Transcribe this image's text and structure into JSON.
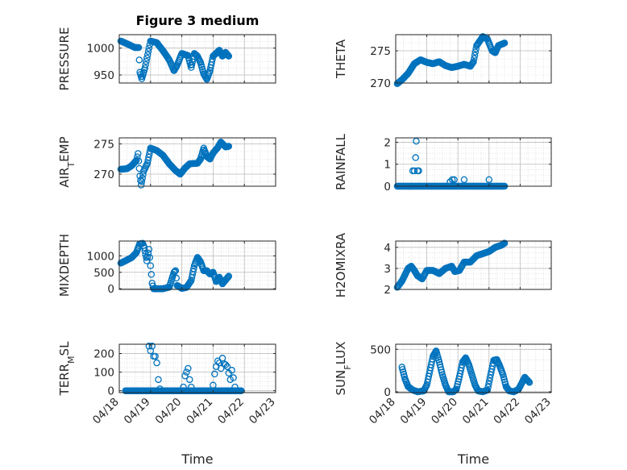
{
  "colors": {
    "marker": "#0072BD",
    "axis": "#262626",
    "grid": "#bcbcbc"
  },
  "chart_data": [
    {
      "type": "scatter",
      "id": "pressure",
      "title": "Figure 3 medium",
      "ylabel": "PRESSURE",
      "ylim": [
        935,
        1025
      ],
      "yticks": [
        950,
        1000
      ],
      "ytick_labels": [
        "950",
        "1000"
      ],
      "xlim": [
        0,
        5
      ],
      "xtick_labels": [],
      "xlabel": "",
      "grid": true,
      "minor_grid": true,
      "series": [
        {
          "knots": [
            [
              0.05,
              1013
            ],
            [
              0.25,
              1008
            ],
            [
              0.5,
              1001
            ],
            [
              0.62,
              1001
            ],
            [
              0.66,
              955
            ],
            [
              0.72,
              943
            ],
            [
              0.82,
              963
            ],
            [
              0.95,
              1000
            ],
            [
              1.0,
              1013
            ],
            [
              1.2,
              1010
            ],
            [
              1.4,
              995
            ],
            [
              1.6,
              978
            ],
            [
              1.75,
              958
            ],
            [
              1.85,
              968
            ],
            [
              2.0,
              990
            ],
            [
              2.2,
              986
            ],
            [
              2.3,
              964
            ],
            [
              2.4,
              990
            ],
            [
              2.5,
              985
            ],
            [
              2.6,
              973
            ],
            [
              2.7,
              952
            ],
            [
              2.8,
              942
            ],
            [
              2.9,
              958
            ],
            [
              3.0,
              985
            ],
            [
              3.2,
              996
            ],
            [
              3.3,
              985
            ],
            [
              3.4,
              992
            ],
            [
              3.5,
              985
            ]
          ]
        }
      ]
    },
    {
      "type": "scatter",
      "id": "theta",
      "title": "",
      "ylabel": "THETA",
      "ylim": [
        270,
        277.5
      ],
      "yticks": [
        270,
        275
      ],
      "ytick_labels": [
        "270",
        "275"
      ],
      "xlim": [
        0,
        5
      ],
      "xtick_labels": [],
      "xlabel": "",
      "grid": true,
      "minor_grid": true,
      "series": [
        {
          "knots": [
            [
              0.05,
              269.9
            ],
            [
              0.2,
              270.5
            ],
            [
              0.4,
              271.5
            ],
            [
              0.6,
              273.0
            ],
            [
              0.8,
              273.6
            ],
            [
              1.0,
              273.2
            ],
            [
              1.2,
              273.0
            ],
            [
              1.4,
              273.3
            ],
            [
              1.6,
              272.7
            ],
            [
              1.8,
              272.4
            ],
            [
              2.0,
              272.6
            ],
            [
              2.2,
              272.9
            ],
            [
              2.4,
              272.6
            ],
            [
              2.5,
              273.3
            ],
            [
              2.6,
              275.8
            ],
            [
              2.8,
              277.2
            ],
            [
              2.95,
              276.8
            ],
            [
              3.1,
              275.0
            ],
            [
              3.2,
              274.7
            ],
            [
              3.3,
              275.8
            ],
            [
              3.5,
              276.2
            ]
          ]
        }
      ]
    },
    {
      "type": "scatter",
      "id": "airtemp",
      "title": "",
      "ylabel": "AIR_TEMP",
      "ylabel_main": "AIR",
      "ylabel_sub": "T",
      "ylabel_tail": "EMP",
      "ylim": [
        268,
        276
      ],
      "yticks": [
        270,
        275
      ],
      "ytick_labels": [
        "270",
        "275"
      ],
      "xlim": [
        0,
        5
      ],
      "xtick_labels": [],
      "xlabel": "",
      "grid": true,
      "minor_grid": true,
      "series": [
        {
          "knots": [
            [
              0.05,
              270.8
            ],
            [
              0.25,
              270.9
            ],
            [
              0.4,
              271.4
            ],
            [
              0.55,
              272.3
            ],
            [
              0.6,
              273.4
            ],
            [
              0.66,
              269.7
            ],
            [
              0.7,
              268.2
            ],
            [
              0.78,
              270.5
            ],
            [
              0.9,
              271.8
            ],
            [
              1.0,
              274.3
            ],
            [
              1.2,
              273.9
            ],
            [
              1.4,
              273.1
            ],
            [
              1.6,
              271.7
            ],
            [
              1.8,
              270.6
            ],
            [
              1.95,
              270.0
            ],
            [
              2.1,
              271.0
            ],
            [
              2.25,
              271.7
            ],
            [
              2.5,
              271.8
            ],
            [
              2.6,
              272.5
            ],
            [
              2.7,
              274.3
            ],
            [
              2.8,
              272.9
            ],
            [
              2.9,
              272.5
            ],
            [
              3.0,
              273.5
            ],
            [
              3.15,
              274.4
            ],
            [
              3.25,
              275.3
            ],
            [
              3.4,
              274.5
            ],
            [
              3.5,
              274.6
            ]
          ]
        }
      ]
    },
    {
      "type": "scatter",
      "id": "rainfall",
      "title": "",
      "ylabel": "RAINFALL",
      "ylim": [
        0,
        2.2
      ],
      "yticks": [
        0,
        1,
        2
      ],
      "ytick_labels": [
        "0",
        "1",
        "2"
      ],
      "xlim": [
        0,
        5
      ],
      "xtick_labels": [],
      "xlabel": "",
      "grid": true,
      "minor_grid": true,
      "spikes": [
        [
          0.55,
          0.7
        ],
        [
          0.6,
          0.7
        ],
        [
          0.64,
          1.3
        ],
        [
          0.66,
          2.05
        ],
        [
          0.7,
          0.7
        ],
        [
          0.74,
          0.7
        ],
        [
          1.75,
          0.2
        ],
        [
          1.82,
          0.3
        ],
        [
          1.88,
          0.3
        ],
        [
          2.2,
          0.3
        ],
        [
          3.0,
          0.3
        ]
      ],
      "series": [
        {
          "knots": [
            [
              0.05,
              0.0
            ],
            [
              3.5,
              0.0
            ]
          ]
        }
      ]
    },
    {
      "type": "scatter",
      "id": "mixdepth",
      "title": "",
      "ylabel": "MIXDEPTH",
      "ylim": [
        -20,
        1450
      ],
      "yticks": [
        0,
        500,
        1000
      ],
      "ytick_labels": [
        "0",
        "500",
        "1000"
      ],
      "xlim": [
        0,
        5
      ],
      "xtick_labels": [],
      "xlabel": "",
      "grid": true,
      "minor_grid": true,
      "series": [
        {
          "knots": [
            [
              0.05,
              780
            ],
            [
              0.2,
              850
            ],
            [
              0.4,
              950
            ],
            [
              0.55,
              1100
            ],
            [
              0.65,
              1360
            ],
            [
              0.75,
              1380
            ],
            [
              0.8,
              1250
            ],
            [
              0.88,
              850
            ],
            [
              0.95,
              1200
            ],
            [
              1.0,
              700
            ],
            [
              1.05,
              170
            ],
            [
              1.1,
              0
            ],
            [
              1.4,
              0
            ],
            [
              1.6,
              50
            ],
            [
              1.75,
              500
            ],
            [
              1.8,
              550
            ],
            [
              1.85,
              100
            ],
            [
              2.0,
              10
            ],
            [
              2.15,
              40
            ],
            [
              2.3,
              250
            ],
            [
              2.4,
              700
            ],
            [
              2.5,
              950
            ],
            [
              2.6,
              820
            ],
            [
              2.7,
              550
            ],
            [
              2.8,
              550
            ],
            [
              2.9,
              450
            ],
            [
              3.0,
              500
            ],
            [
              3.1,
              220
            ],
            [
              3.2,
              350
            ],
            [
              3.3,
              150
            ],
            [
              3.5,
              380
            ]
          ]
        }
      ]
    },
    {
      "type": "scatter",
      "id": "h2omixra",
      "title": "",
      "ylabel": "H2OMIXRA",
      "ylim": [
        2,
        4.3
      ],
      "yticks": [
        2,
        3,
        4
      ],
      "ytick_labels": [
        "2",
        "3",
        "4"
      ],
      "xlim": [
        0,
        5
      ],
      "xtick_labels": [],
      "xlabel": "",
      "grid": true,
      "minor_grid": true,
      "series": [
        {
          "knots": [
            [
              0.05,
              2.1
            ],
            [
              0.2,
              2.4
            ],
            [
              0.4,
              3.0
            ],
            [
              0.5,
              3.1
            ],
            [
              0.6,
              2.9
            ],
            [
              0.7,
              2.65
            ],
            [
              0.85,
              2.5
            ],
            [
              1.0,
              2.9
            ],
            [
              1.2,
              2.9
            ],
            [
              1.4,
              2.75
            ],
            [
              1.6,
              3.0
            ],
            [
              1.8,
              3.1
            ],
            [
              1.9,
              2.85
            ],
            [
              2.05,
              2.9
            ],
            [
              2.2,
              3.3
            ],
            [
              2.4,
              3.3
            ],
            [
              2.6,
              3.6
            ],
            [
              2.8,
              3.7
            ],
            [
              3.0,
              3.8
            ],
            [
              3.2,
              4.0
            ],
            [
              3.4,
              4.1
            ],
            [
              3.5,
              4.2
            ]
          ]
        }
      ]
    },
    {
      "type": "scatter",
      "id": "terrmsl",
      "title": "",
      "ylabel": "TERR_MSL",
      "ylabel_main": "TERR",
      "ylabel_sub": "M",
      "ylabel_tail": "SL",
      "ylim": [
        -10,
        250
      ],
      "yticks": [
        0,
        100,
        200
      ],
      "ytick_labels": [
        "0",
        "100",
        "200"
      ],
      "xlim": [
        0,
        5
      ],
      "xtick_labels": [
        "04/18",
        "04/19",
        "04/20",
        "04/21",
        "04/22",
        "04/23"
      ],
      "xlabel": "Time",
      "grid": true,
      "minor_grid": true,
      "spikes": [
        [
          0.95,
          240
        ],
        [
          1.0,
          215
        ],
        [
          1.05,
          240
        ],
        [
          1.1,
          185
        ],
        [
          1.15,
          185
        ],
        [
          1.2,
          150
        ],
        [
          1.25,
          60
        ],
        [
          1.3,
          10
        ],
        [
          2.05,
          20
        ],
        [
          2.1,
          80
        ],
        [
          2.15,
          100
        ],
        [
          2.2,
          120
        ],
        [
          2.25,
          60
        ],
        [
          2.3,
          20
        ],
        [
          3.0,
          30
        ],
        [
          3.05,
          90
        ],
        [
          3.1,
          130
        ],
        [
          3.15,
          160
        ],
        [
          3.2,
          150
        ],
        [
          3.25,
          120
        ],
        [
          3.3,
          175
        ],
        [
          3.35,
          145
        ],
        [
          3.4,
          140
        ],
        [
          3.45,
          130
        ],
        [
          3.5,
          95
        ],
        [
          3.55,
          60
        ],
        [
          3.6,
          110
        ],
        [
          3.65,
          70
        ],
        [
          3.7,
          20
        ]
      ],
      "series": [
        {
          "knots": [
            [
              0.2,
              0
            ],
            [
              3.9,
              0
            ]
          ]
        }
      ]
    },
    {
      "type": "scatter",
      "id": "sunflux",
      "title": "",
      "ylabel": "SUN_FLUX",
      "ylabel_main": "SUN",
      "ylabel_sub": "F",
      "ylabel_tail": "LUX",
      "ylim": [
        -10,
        560
      ],
      "yticks": [
        0,
        500
      ],
      "ytick_labels": [
        "0",
        "500"
      ],
      "xlim": [
        0,
        5
      ],
      "xtick_labels": [
        "04/18",
        "04/19",
        "04/20",
        "04/21",
        "04/22",
        "04/23"
      ],
      "xlabel": "Time",
      "grid": true,
      "minor_grid": true,
      "series": [
        {
          "knots": [
            [
              0.2,
              290
            ],
            [
              0.3,
              150
            ],
            [
              0.4,
              60
            ],
            [
              0.55,
              20
            ],
            [
              0.7,
              0
            ],
            [
              0.9,
              10
            ],
            [
              1.0,
              80
            ],
            [
              1.1,
              250
            ],
            [
              1.2,
              420
            ],
            [
              1.3,
              480
            ],
            [
              1.4,
              350
            ],
            [
              1.5,
              200
            ],
            [
              1.6,
              80
            ],
            [
              1.7,
              0
            ],
            [
              1.85,
              0
            ],
            [
              1.95,
              30
            ],
            [
              2.05,
              180
            ],
            [
              2.15,
              350
            ],
            [
              2.25,
              400
            ],
            [
              2.35,
              320
            ],
            [
              2.45,
              200
            ],
            [
              2.55,
              80
            ],
            [
              2.65,
              10
            ],
            [
              2.8,
              0
            ],
            [
              2.95,
              20
            ],
            [
              3.05,
              200
            ],
            [
              3.15,
              370
            ],
            [
              3.25,
              380
            ],
            [
              3.35,
              300
            ],
            [
              3.45,
              200
            ],
            [
              3.55,
              60
            ],
            [
              3.65,
              10
            ],
            [
              3.8,
              0
            ],
            [
              3.95,
              30
            ],
            [
              4.05,
              100
            ],
            [
              4.15,
              170
            ],
            [
              4.25,
              130
            ],
            [
              4.3,
              110
            ]
          ]
        }
      ]
    }
  ]
}
